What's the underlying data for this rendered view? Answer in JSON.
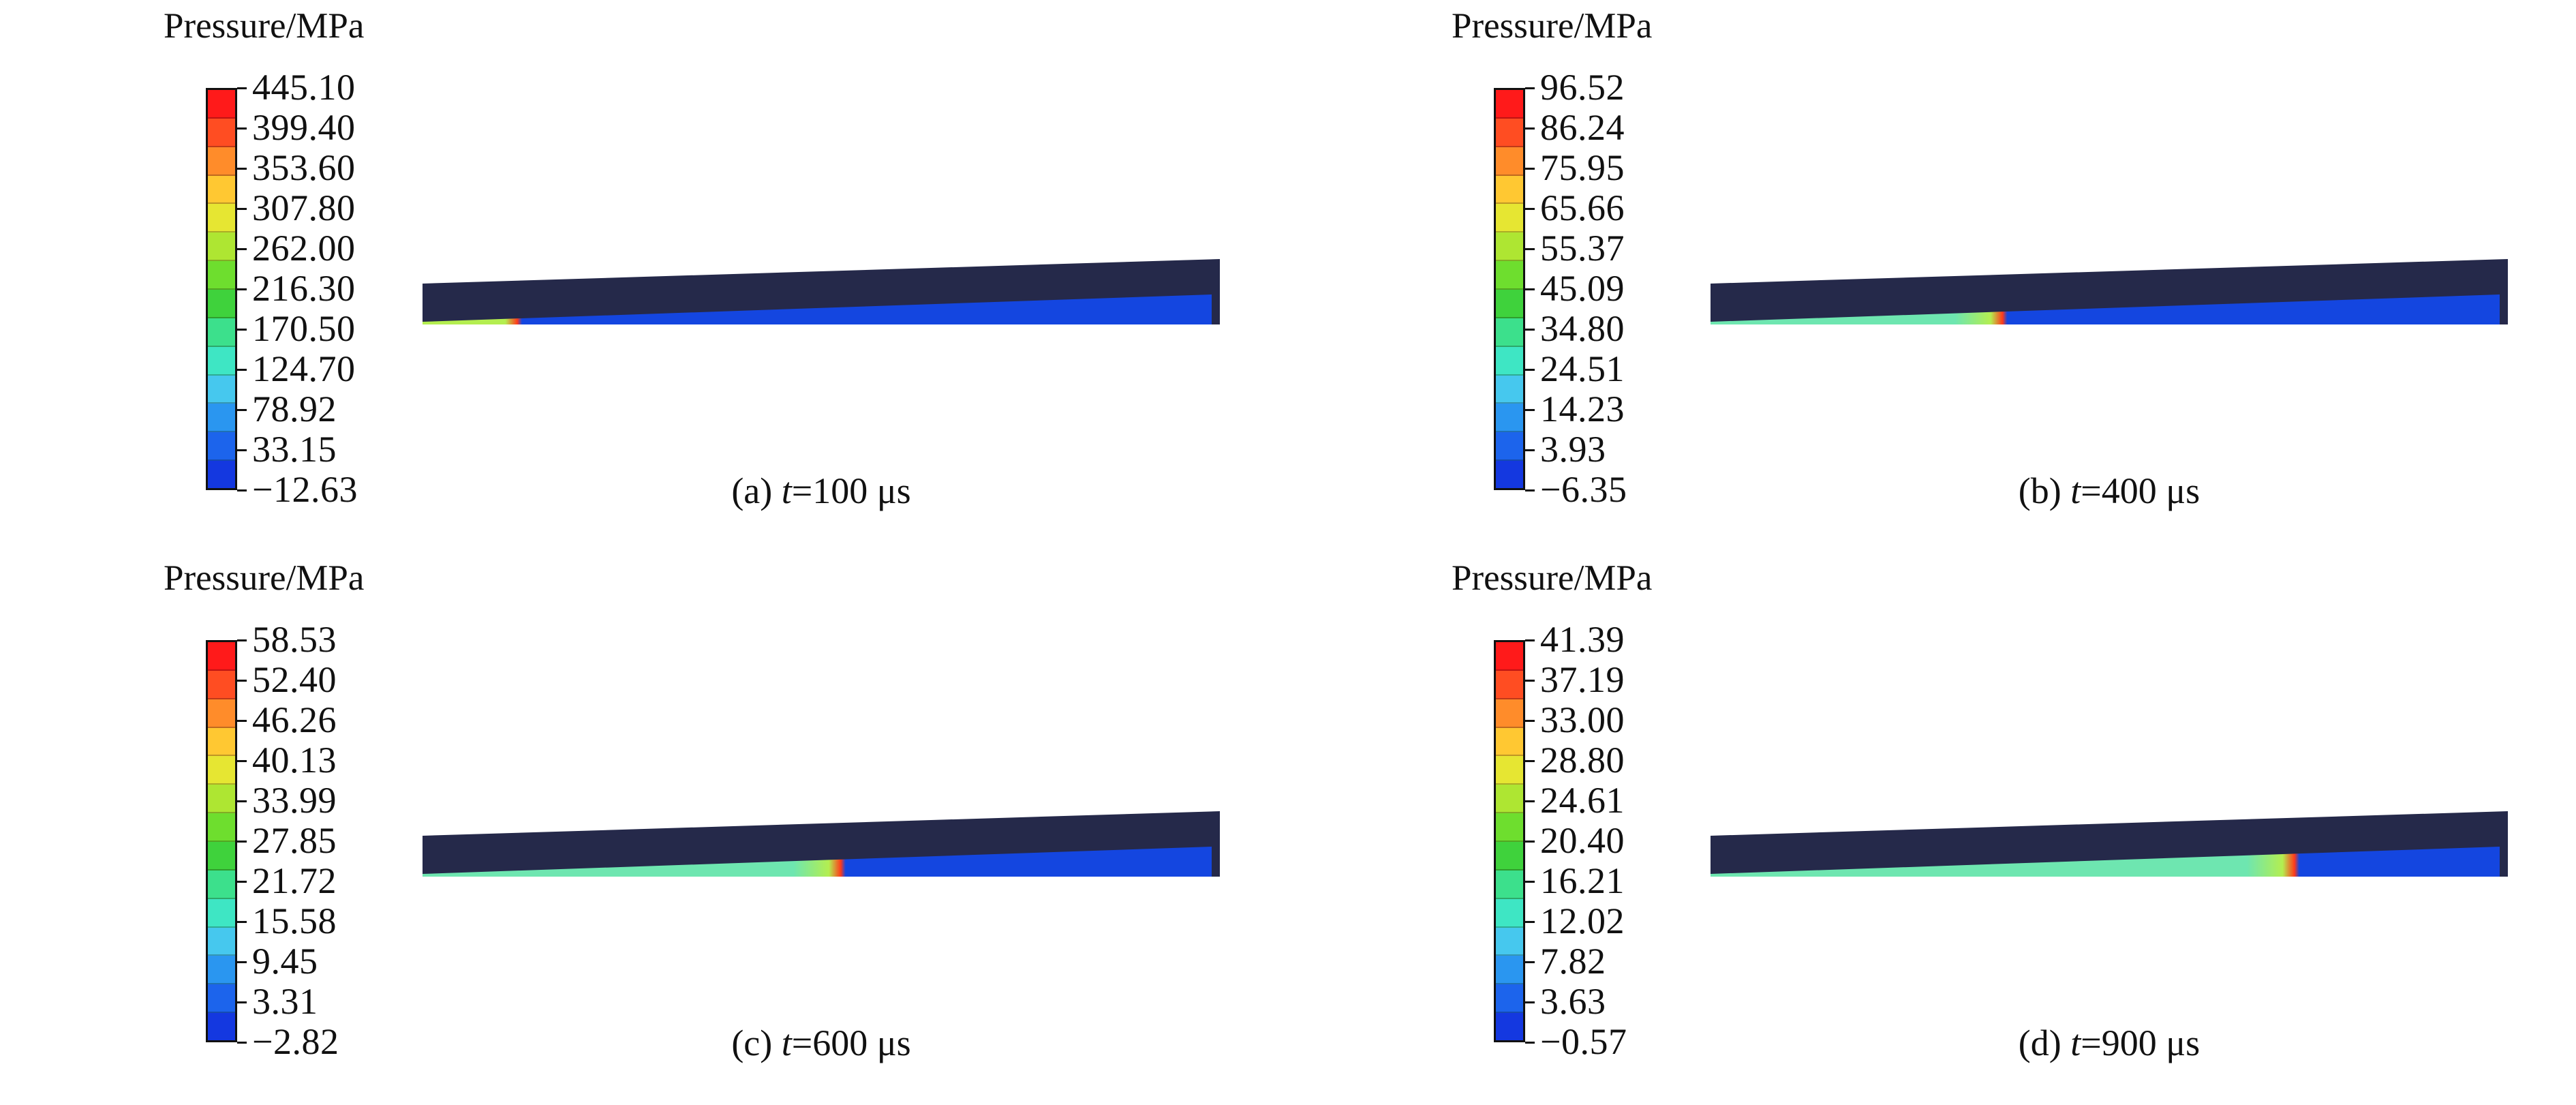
{
  "panels": [
    {
      "legend_title": "Pressure/MPa",
      "ticks": [
        "445.10",
        "399.40",
        "353.60",
        "307.80",
        "262.00",
        "216.30",
        "170.50",
        "124.70",
        "78.92",
        "33.15",
        "−12.63"
      ],
      "caption_prefix": "(a) ",
      "caption_var": "t",
      "caption_suffix": "=100 μs",
      "front_position": 0.12
    },
    {
      "legend_title": "Pressure/MPa",
      "ticks": [
        "96.52",
        "86.24",
        "75.95",
        "65.66",
        "55.37",
        "45.09",
        "34.80",
        "24.51",
        "14.23",
        "3.93",
        "−6.35"
      ],
      "caption_prefix": "(b) ",
      "caption_var": "t",
      "caption_suffix": "=400 μs",
      "front_position": 0.37
    },
    {
      "legend_title": "Pressure/MPa",
      "ticks": [
        "58.53",
        "52.40",
        "46.26",
        "40.13",
        "33.99",
        "27.85",
        "21.72",
        "15.58",
        "9.45",
        "3.31",
        "−2.82"
      ],
      "caption_prefix": "(c) ",
      "caption_var": "t",
      "caption_suffix": "=600 μs",
      "front_position": 0.53
    },
    {
      "legend_title": "Pressure/MPa",
      "ticks": [
        "41.39",
        "37.19",
        "33.00",
        "28.80",
        "24.61",
        "20.40",
        "16.21",
        "12.02",
        "7.82",
        "3.63",
        "−0.57"
      ],
      "caption_prefix": "(d) ",
      "caption_var": "t",
      "caption_suffix": "=900 μs",
      "front_position": 0.74
    }
  ],
  "colormap": [
    "#ff1a1a",
    "#ff4d22",
    "#ff8c2a",
    "#ffc832",
    "#e6e632",
    "#aee632",
    "#6ede2e",
    "#3fd23c",
    "#3ce08c",
    "#3ee6c4",
    "#46c8ee",
    "#2a96f0",
    "#1c64ec",
    "#1438e0"
  ],
  "colors": {
    "beam_top": "#25294a",
    "fluid_low": "#1446e0",
    "fluid_mid": "#6ee6b0",
    "fluid_high": "#b4ee50",
    "front": "#ff3a1a"
  }
}
